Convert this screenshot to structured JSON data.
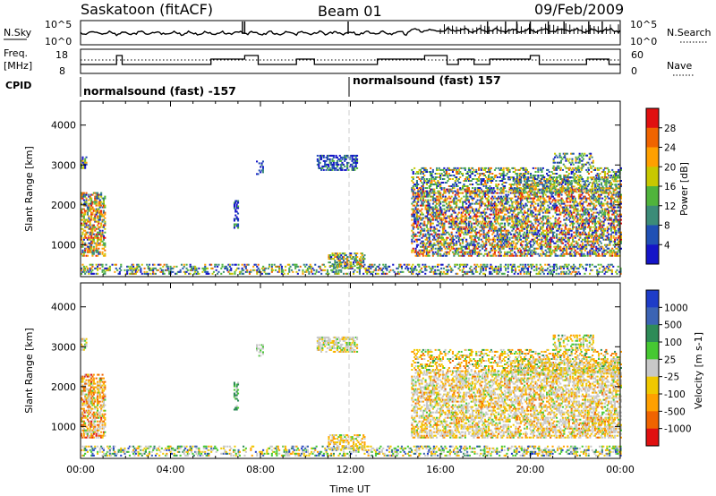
{
  "header": {
    "title": "Saskatoon (fitACF)",
    "beam": "Beam 01",
    "date": "09/Feb/2009"
  },
  "top_panels": {
    "nsky_label": "N.Sky",
    "nsky_top": "10^5",
    "nsky_bottom": "10^0",
    "nsearch_label": "N.Search",
    "nsearch_top": "10^5",
    "nsearch_bottom": "10^0",
    "freq_label": "Freq.",
    "freq_unit": "[MHz]",
    "freq_top": "18",
    "freq_bottom": "8",
    "nave_label": "Nave",
    "nave_top": "60",
    "nave_bottom": "0",
    "cpid_label": "CPID",
    "cpid_left": "normalsound (fast) -157",
    "cpid_right": "normalsound (fast) 157"
  },
  "chart_data": [
    {
      "type": "heatmap",
      "name": "Power",
      "ylabel": "Slant Range [km]",
      "xlabel": "Time UT",
      "y_ticks": [
        "1000",
        "2000",
        "3000",
        "4000"
      ],
      "ylim": [
        200,
        4600
      ],
      "colorbar_label": "Power [dB]",
      "colorbar_ticks": [
        "4",
        "8",
        "12",
        "16",
        "20",
        "24",
        "28"
      ],
      "colorbar_colors": [
        "#1414c8",
        "#2050b4",
        "#3c8c78",
        "#50b43c",
        "#c8c800",
        "#ffa000",
        "#f06400",
        "#e01010"
      ]
    },
    {
      "type": "heatmap",
      "name": "Velocity",
      "ylabel": "Slant Range [km]",
      "xlabel": "Time UT",
      "y_ticks": [
        "1000",
        "2000",
        "3000",
        "4000"
      ],
      "ylim": [
        200,
        4600
      ],
      "colorbar_label": "Velocity [m s-1]",
      "colorbar_ticks": [
        "1000",
        "500",
        "100",
        "25",
        "-25",
        "-100",
        "-500",
        "-1000"
      ],
      "colorbar_colors": [
        "#1e3cc8",
        "#3c64b4",
        "#2e8b57",
        "#46c832",
        "#c8c8c8",
        "#f0c800",
        "#ffa000",
        "#f06400",
        "#e01010"
      ]
    }
  ],
  "x_axis": {
    "label": "Time UT",
    "ticks": [
      "00:00",
      "04:00",
      "08:00",
      "12:00",
      "16:00",
      "20:00",
      "00:00"
    ]
  }
}
